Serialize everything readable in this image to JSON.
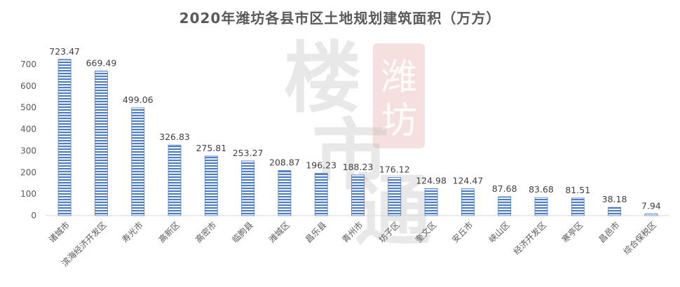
{
  "chart_data": {
    "type": "bar",
    "title": "2020年潍坊各县市区土地规划建筑面积（万方）",
    "xlabel": "",
    "ylabel": "",
    "ylim": [
      0,
      700
    ],
    "yticks": [
      0,
      100,
      200,
      300,
      400,
      500,
      600,
      700
    ],
    "grid": false,
    "categories": [
      "诸城市",
      "滨海经济开发区",
      "寿光市",
      "高新区",
      "高密市",
      "临朐县",
      "潍城区",
      "昌乐县",
      "青州市",
      "坊子区",
      "奎文区",
      "安丘市",
      "峡山区",
      "经济开发区",
      "寒亭区",
      "昌邑市",
      "综合保税区"
    ],
    "values": [
      723.47,
      669.49,
      499.06,
      326.83,
      275.81,
      253.27,
      208.87,
      196.23,
      188.23,
      176.12,
      124.98,
      124.47,
      87.68,
      83.68,
      81.51,
      38.18,
      7.94
    ],
    "value_labels": [
      "723.47",
      "669.49",
      "499.06",
      "326.83",
      "275.81",
      "253.27",
      "208.87",
      "196.23",
      "188.23",
      "176.12",
      "124.98",
      "124.47",
      "87.68",
      "83.68",
      "81.51",
      "38.18",
      "7.94"
    ],
    "bar_color": "#4F7DC4"
  },
  "watermark": {
    "seal_text": "潍坊",
    "calligraphy": "楼市通",
    "seal_color": "#E3A3A3"
  }
}
